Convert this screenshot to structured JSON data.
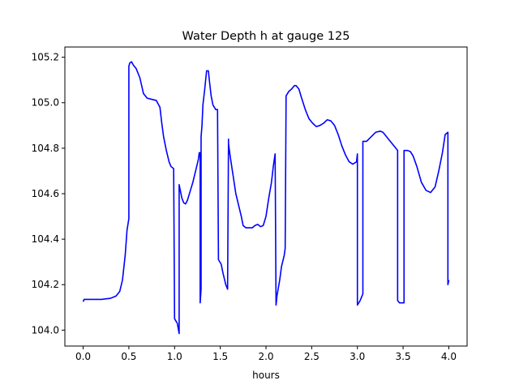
{
  "chart_data": {
    "type": "line",
    "title": "Water Depth h at gauge 125",
    "xlabel": "hours",
    "ylabel": "",
    "xlim": [
      -0.2,
      4.2
    ],
    "ylim": [
      103.93,
      105.245
    ],
    "xticks": [
      0.0,
      0.5,
      1.0,
      1.5,
      2.0,
      2.5,
      3.0,
      3.5,
      4.0
    ],
    "xtick_labels": [
      "0.0",
      "0.5",
      "1.0",
      "1.5",
      "2.0",
      "2.5",
      "3.0",
      "3.5",
      "4.0"
    ],
    "yticks": [
      104.0,
      104.2,
      104.4,
      104.6,
      104.8,
      105.0,
      105.2
    ],
    "ytick_labels": [
      "104.0",
      "104.2",
      "104.4",
      "104.6",
      "104.8",
      "105.0",
      "105.2"
    ],
    "grid": false,
    "series": [
      {
        "color": "#0000ff",
        "x": [
          0.0,
          0.01,
          0.1,
          0.2,
          0.3,
          0.36,
          0.4,
          0.43,
          0.46,
          0.48,
          0.5,
          0.5,
          0.51,
          0.53,
          0.55,
          0.58,
          0.62,
          0.66,
          0.7,
          0.75,
          0.8,
          0.84,
          0.86,
          0.88,
          0.91,
          0.94,
          0.96,
          0.99,
          1.0,
          1.0,
          1.03,
          1.05,
          1.05,
          1.06,
          1.08,
          1.1,
          1.12,
          1.14,
          1.17,
          1.2,
          1.23,
          1.26,
          1.27,
          1.28,
          1.28,
          1.29,
          1.29,
          1.3,
          1.31,
          1.33,
          1.35,
          1.37,
          1.38,
          1.4,
          1.42,
          1.45,
          1.47,
          1.48,
          1.48,
          1.51,
          1.53,
          1.56,
          1.58,
          1.59,
          1.59,
          1.61,
          1.64,
          1.67,
          1.7,
          1.73,
          1.75,
          1.78,
          1.82,
          1.85,
          1.88,
          1.91,
          1.94,
          1.97,
          2.0,
          2.03,
          2.06,
          2.08,
          2.1,
          2.11,
          2.12,
          2.15,
          2.17,
          2.2,
          2.21,
          2.22,
          2.22,
          2.25,
          2.28,
          2.31,
          2.33,
          2.36,
          2.39,
          2.43,
          2.47,
          2.51,
          2.55,
          2.59,
          2.63,
          2.67,
          2.71,
          2.75,
          2.79,
          2.83,
          2.87,
          2.91,
          2.95,
          2.99,
          3.0,
          3.0,
          3.03,
          3.05,
          3.06,
          3.06,
          3.1,
          3.15,
          3.2,
          3.25,
          3.28,
          3.32,
          3.36,
          3.4,
          3.44,
          3.44,
          3.46,
          3.49,
          3.51,
          3.51,
          3.55,
          3.58,
          3.61,
          3.65,
          3.7,
          3.75,
          3.8,
          3.85,
          3.89,
          3.93,
          3.96,
          3.99,
          3.99,
          4.0
        ],
        "y": [
          104.125,
          104.135,
          104.135,
          104.135,
          104.14,
          104.15,
          104.17,
          104.22,
          104.33,
          104.44,
          104.49,
          105.16,
          105.175,
          105.18,
          105.165,
          105.15,
          105.11,
          105.04,
          105.02,
          105.015,
          105.01,
          104.98,
          104.91,
          104.85,
          104.79,
          104.74,
          104.72,
          104.71,
          104.05,
          104.05,
          104.03,
          103.985,
          104.64,
          104.62,
          104.58,
          104.56,
          104.555,
          104.57,
          104.61,
          104.65,
          104.7,
          104.75,
          104.78,
          104.78,
          104.12,
          104.18,
          104.85,
          104.9,
          104.99,
          105.06,
          105.14,
          105.14,
          105.1,
          105.03,
          104.99,
          104.97,
          104.97,
          104.31,
          104.31,
          104.29,
          104.25,
          104.2,
          104.18,
          104.84,
          104.82,
          104.76,
          104.68,
          104.6,
          104.55,
          104.5,
          104.46,
          104.45,
          104.45,
          104.45,
          104.46,
          104.465,
          104.455,
          104.46,
          104.5,
          104.58,
          104.65,
          104.72,
          104.775,
          104.11,
          104.15,
          104.22,
          104.28,
          104.33,
          104.36,
          105.03,
          105.03,
          105.05,
          105.06,
          105.075,
          105.075,
          105.06,
          105.02,
          104.97,
          104.93,
          104.91,
          104.895,
          104.9,
          104.91,
          104.925,
          104.92,
          104.9,
          104.86,
          104.81,
          104.77,
          104.74,
          104.73,
          104.74,
          104.775,
          104.11,
          104.13,
          104.15,
          104.16,
          104.83,
          104.83,
          104.85,
          104.87,
          104.875,
          104.87,
          104.85,
          104.83,
          104.81,
          104.79,
          104.13,
          104.12,
          104.12,
          104.12,
          104.79,
          104.79,
          104.785,
          104.765,
          104.72,
          104.65,
          104.615,
          104.605,
          104.63,
          104.7,
          104.78,
          104.86,
          104.87,
          104.2,
          104.22
        ]
      }
    ]
  }
}
